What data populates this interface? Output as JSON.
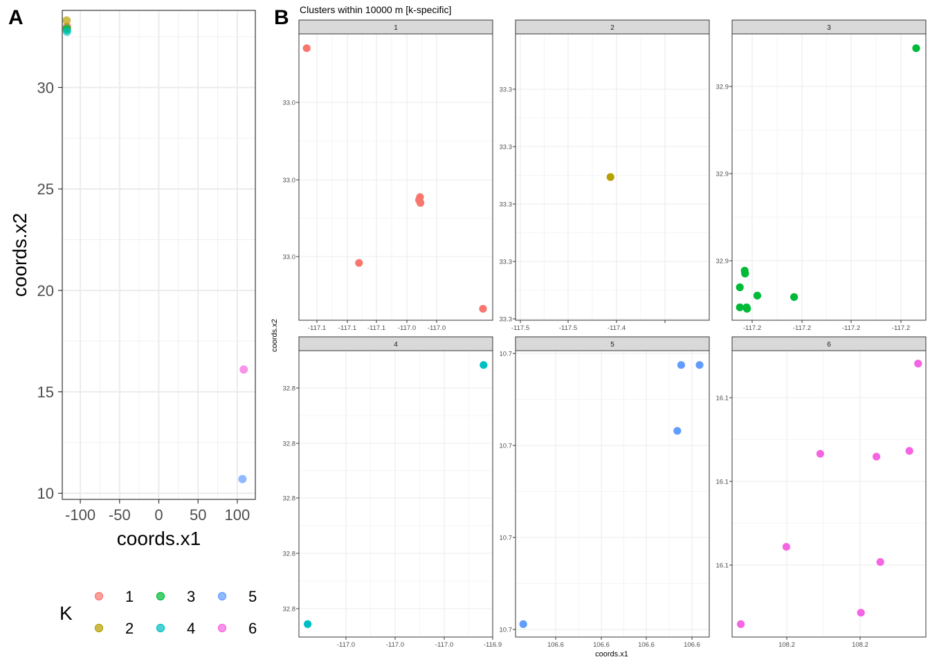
{
  "colors": {
    "1": "#F8766D",
    "2": "#B79F00",
    "3": "#00BA38",
    "4": "#00BFC4",
    "5": "#619CFF",
    "6": "#F564E3"
  },
  "panel_a": {
    "letter": "A",
    "xlabel": "coords.x1",
    "ylabel": "coords.x2",
    "x_ticks": [
      "-100",
      "-50",
      "0",
      "50",
      "100"
    ],
    "y_ticks": [
      "10",
      "15",
      "20",
      "25",
      "30"
    ],
    "legend_title": "K",
    "legend_labels": [
      "1",
      "2",
      "3",
      "4",
      "5",
      "6"
    ]
  },
  "panel_b": {
    "letter": "B",
    "title": "Clusters within 10000 m [k-specific]",
    "xlabel": "coords.x1",
    "ylabel": "coords.x2",
    "facets": [
      {
        "label": "1",
        "x_ticks": [
          "-117.1",
          "-117.1",
          "-117.1",
          "-117.0",
          "-117.0"
        ],
        "y_ticks": [
          "33.0",
          "33.0",
          "33.0"
        ]
      },
      {
        "label": "2",
        "x_ticks": [
          "-117.5",
          "-117.5",
          "-117.4"
        ],
        "y_ticks": [
          "33.3",
          "33.3",
          "33.3",
          "33.3",
          "33.3"
        ]
      },
      {
        "label": "3",
        "x_ticks": [
          "-117.2",
          "-117.2",
          "-117.2",
          "-117.2"
        ],
        "y_ticks": [
          "32.9",
          "32.9",
          "32.9"
        ]
      },
      {
        "label": "4",
        "x_ticks": [
          "-117.0",
          "-117.0",
          "-117.0",
          "-116.9"
        ],
        "y_ticks": [
          "32.8",
          "32.8",
          "32.8",
          "32.8",
          "32.8"
        ]
      },
      {
        "label": "5",
        "x_ticks": [
          "106.6",
          "106.6",
          "106.6",
          "106.6"
        ],
        "y_ticks": [
          "10.7",
          "10.7",
          "10.7",
          "10.7"
        ]
      },
      {
        "label": "6",
        "x_ticks": [
          "108.2",
          "108.2"
        ],
        "y_ticks": [
          "16.1",
          "16.1",
          "16.1"
        ]
      }
    ]
  },
  "chart_data": [
    {
      "type": "scatter",
      "xlabel": "coords.x1",
      "ylabel": "coords.x2",
      "xlim": [
        -123,
        123
      ],
      "ylim": [
        9.7,
        33.8
      ],
      "legend": "bottom",
      "legend_title": "K",
      "grid": true,
      "series": [
        {
          "name": "1",
          "x": [
            -117.05,
            -117.05
          ],
          "y": [
            33.0,
            32.95
          ]
        },
        {
          "name": "2",
          "x": [
            -117.5
          ],
          "y": [
            33.3
          ]
        },
        {
          "name": "3",
          "x": [
            -117.2,
            -117.2
          ],
          "y": [
            32.9,
            32.85
          ]
        },
        {
          "name": "4",
          "x": [
            -116.95
          ],
          "y": [
            32.75
          ]
        },
        {
          "name": "5",
          "x": [
            106.6
          ],
          "y": [
            10.7
          ]
        },
        {
          "name": "6",
          "x": [
            108.2
          ],
          "y": [
            16.1
          ]
        }
      ]
    },
    {
      "type": "scatter",
      "facet": "1",
      "xlim": [
        0,
        1
      ],
      "ylim": [
        0,
        1
      ],
      "x": [
        0.04,
        0.31,
        0.62,
        0.625,
        0.627,
        0.95
      ],
      "y": [
        0.95,
        0.2,
        0.42,
        0.43,
        0.41,
        0.04
      ]
    },
    {
      "type": "scatter",
      "facet": "2",
      "xlim": [
        0,
        1
      ],
      "ylim": [
        0,
        1
      ],
      "x": [
        0.49
      ],
      "y": [
        0.5
      ]
    },
    {
      "type": "scatter",
      "facet": "3",
      "xlim": [
        0,
        1
      ],
      "ylim": [
        0,
        1
      ],
      "x": [
        0.95,
        0.065,
        0.067,
        0.04,
        0.13,
        0.32,
        0.04,
        0.075,
        0.077
      ],
      "y": [
        0.95,
        0.173,
        0.163,
        0.115,
        0.086,
        0.081,
        0.045,
        0.045,
        0.04
      ]
    },
    {
      "type": "scatter",
      "facet": "4",
      "xlim": [
        0,
        1
      ],
      "ylim": [
        0,
        1
      ],
      "x": [
        0.953,
        0.045
      ],
      "y": [
        0.95,
        0.045
      ]
    },
    {
      "type": "scatter",
      "facet": "5",
      "xlim": [
        0,
        1
      ],
      "ylim": [
        0,
        1
      ],
      "x": [
        0.04,
        0.835,
        0.855,
        0.95
      ],
      "y": [
        0.045,
        0.72,
        0.95,
        0.95
      ]
    },
    {
      "type": "scatter",
      "facet": "6",
      "xlim": [
        0,
        1
      ],
      "ylim": [
        0,
        1
      ],
      "x": [
        0.96,
        0.455,
        0.745,
        0.915,
        0.28,
        0.765,
        0.665,
        0.045
      ],
      "y": [
        0.955,
        0.64,
        0.63,
        0.65,
        0.315,
        0.262,
        0.085,
        0.045
      ]
    }
  ]
}
